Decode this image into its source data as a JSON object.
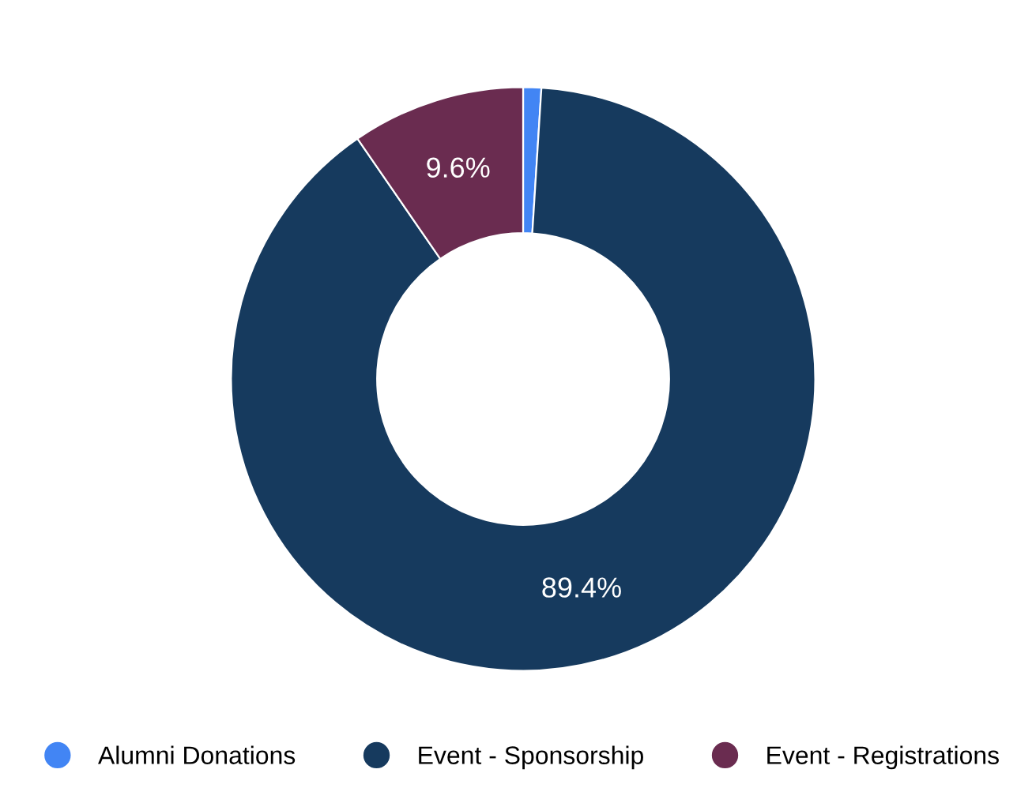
{
  "chart_data": {
    "type": "donut",
    "categories": [
      "Alumni Donations",
      "Event - Sponsorship",
      "Event - Registrations"
    ],
    "values": [
      1.0,
      89.4,
      9.6
    ],
    "colors": [
      "#4285f4",
      "#163a5e",
      "#6a2c50"
    ],
    "value_labels": [
      null,
      "89.4%",
      "9.6%"
    ],
    "legend": "bottom"
  }
}
